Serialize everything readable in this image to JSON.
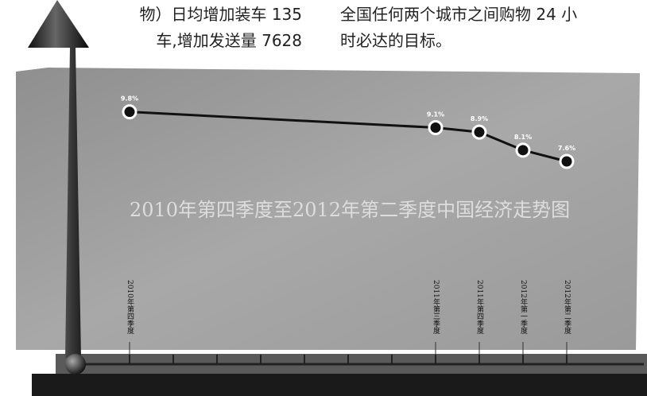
{
  "article": {
    "left_lines": [
      "物）日均增加装车 135",
      "车,增加发送量 7628"
    ],
    "right_lines": [
      "全国任何两个城市之间购物 24 小",
      "时必达的目标。"
    ]
  },
  "chart_data": {
    "type": "line",
    "title": "2010年第四季度至2012年第二季度中国经济走势图",
    "categories": [
      "2010年第四季度",
      null,
      null,
      null,
      null,
      null,
      null,
      "2011年第三季度",
      "2011年第四季度",
      "2012年第一季度",
      "2012年第二季度"
    ],
    "values": [
      9.8,
      null,
      null,
      null,
      null,
      null,
      null,
      9.1,
      8.9,
      8.1,
      7.6
    ],
    "value_labels": [
      "9.8%",
      null,
      null,
      null,
      null,
      null,
      null,
      "9.1%",
      "8.9%",
      "8.1%",
      "7.6%"
    ],
    "color": "#111111",
    "ylim": [
      7,
      10
    ]
  }
}
